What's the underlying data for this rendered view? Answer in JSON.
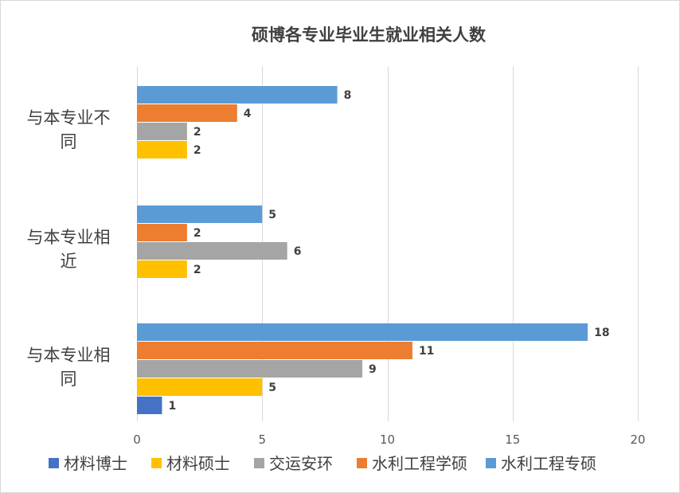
{
  "chart_data": {
    "type": "bar",
    "orientation": "horizontal",
    "title": "硕博各专业毕业生就业相关人数",
    "categories": [
      {
        "lines": [
          "与本专业相",
          "同"
        ],
        "full": "与本专业相同"
      },
      {
        "lines": [
          "与本专业相",
          "近"
        ],
        "full": "与本专业相近"
      },
      {
        "lines": [
          "与本专业不",
          "同"
        ],
        "full": "与本专业不同"
      }
    ],
    "series": [
      {
        "name": "材料博士",
        "color": "#4472c4",
        "values": [
          1,
          null,
          null
        ]
      },
      {
        "name": "材料硕士",
        "color": "#ffc000",
        "values": [
          5,
          2,
          2
        ]
      },
      {
        "name": "交运安环",
        "color": "#a5a5a5",
        "values": [
          9,
          6,
          2
        ]
      },
      {
        "name": "水利工程学硕",
        "color": "#ed7d31",
        "values": [
          11,
          2,
          4
        ]
      },
      {
        "name": "水利工程专硕",
        "color": "#5b9bd5",
        "values": [
          18,
          5,
          8
        ]
      }
    ],
    "xlim": [
      0,
      20
    ],
    "xticks": [
      0,
      5,
      10,
      15,
      20
    ],
    "grid": true,
    "legend": "bottom"
  }
}
